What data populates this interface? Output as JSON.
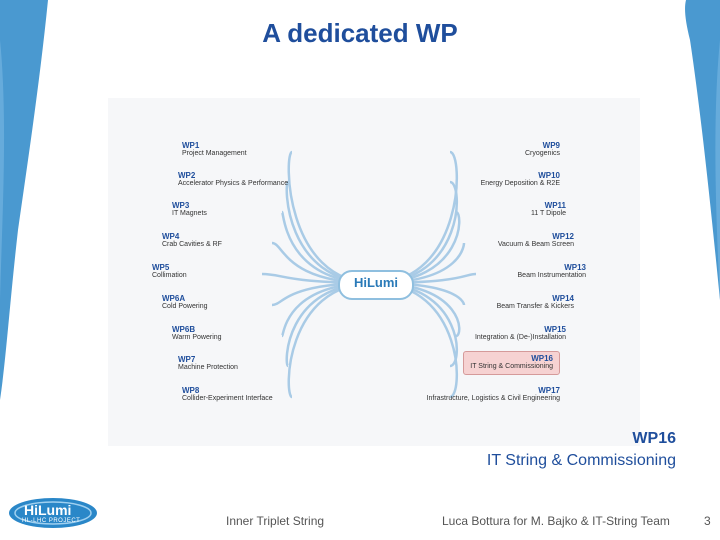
{
  "slide": {
    "title": "A dedicated WP",
    "callout": {
      "wp_id": "WP16",
      "wp_name": "IT String & Commissioning"
    },
    "footer_left": "Inner Triplet String",
    "footer_right": "Luca Bottura for M. Bajko & IT-String Team",
    "page_number": "3",
    "logo_text": "HiLumi",
    "logo_subtext": "HL-LHC PROJECT",
    "center_logo_text": "HiLumi"
  },
  "left_wps": [
    {
      "id": "WP1",
      "name": "Project Management"
    },
    {
      "id": "WP2",
      "name": "Accelerator Physics & Performance"
    },
    {
      "id": "WP3",
      "name": "IT Magnets"
    },
    {
      "id": "WP4",
      "name": "Crab Cavities & RF"
    },
    {
      "id": "WP5",
      "name": "Collimation"
    },
    {
      "id": "WP6A",
      "name": "Cold Powering"
    },
    {
      "id": "WP6B",
      "name": "Warm Powering"
    },
    {
      "id": "WP7",
      "name": "Machine Protection"
    },
    {
      "id": "WP8",
      "name": "Collider-Experiment Interface"
    }
  ],
  "right_wps": [
    {
      "id": "WP9",
      "name": "Cryogenics"
    },
    {
      "id": "WP10",
      "name": "Energy Deposition & R2E"
    },
    {
      "id": "WP11",
      "name": "11 T Dipole"
    },
    {
      "id": "WP12",
      "name": "Vacuum & Beam Screen"
    },
    {
      "id": "WP13",
      "name": "Beam Instrumentation"
    },
    {
      "id": "WP14",
      "name": "Beam Transfer & Kickers"
    },
    {
      "id": "WP15",
      "name": "Integration & (De-)Installation"
    },
    {
      "id": "WP16",
      "name": "IT String & Commissioning"
    },
    {
      "id": "WP17",
      "name": "Infrastructure, Logistics & Civil Engineering"
    }
  ],
  "colors": {
    "title": "#1f4e9c",
    "branch_line": "#a9cbe6",
    "highlight_fill": "#f6d2d2",
    "swoosh": "#2a87c8"
  }
}
